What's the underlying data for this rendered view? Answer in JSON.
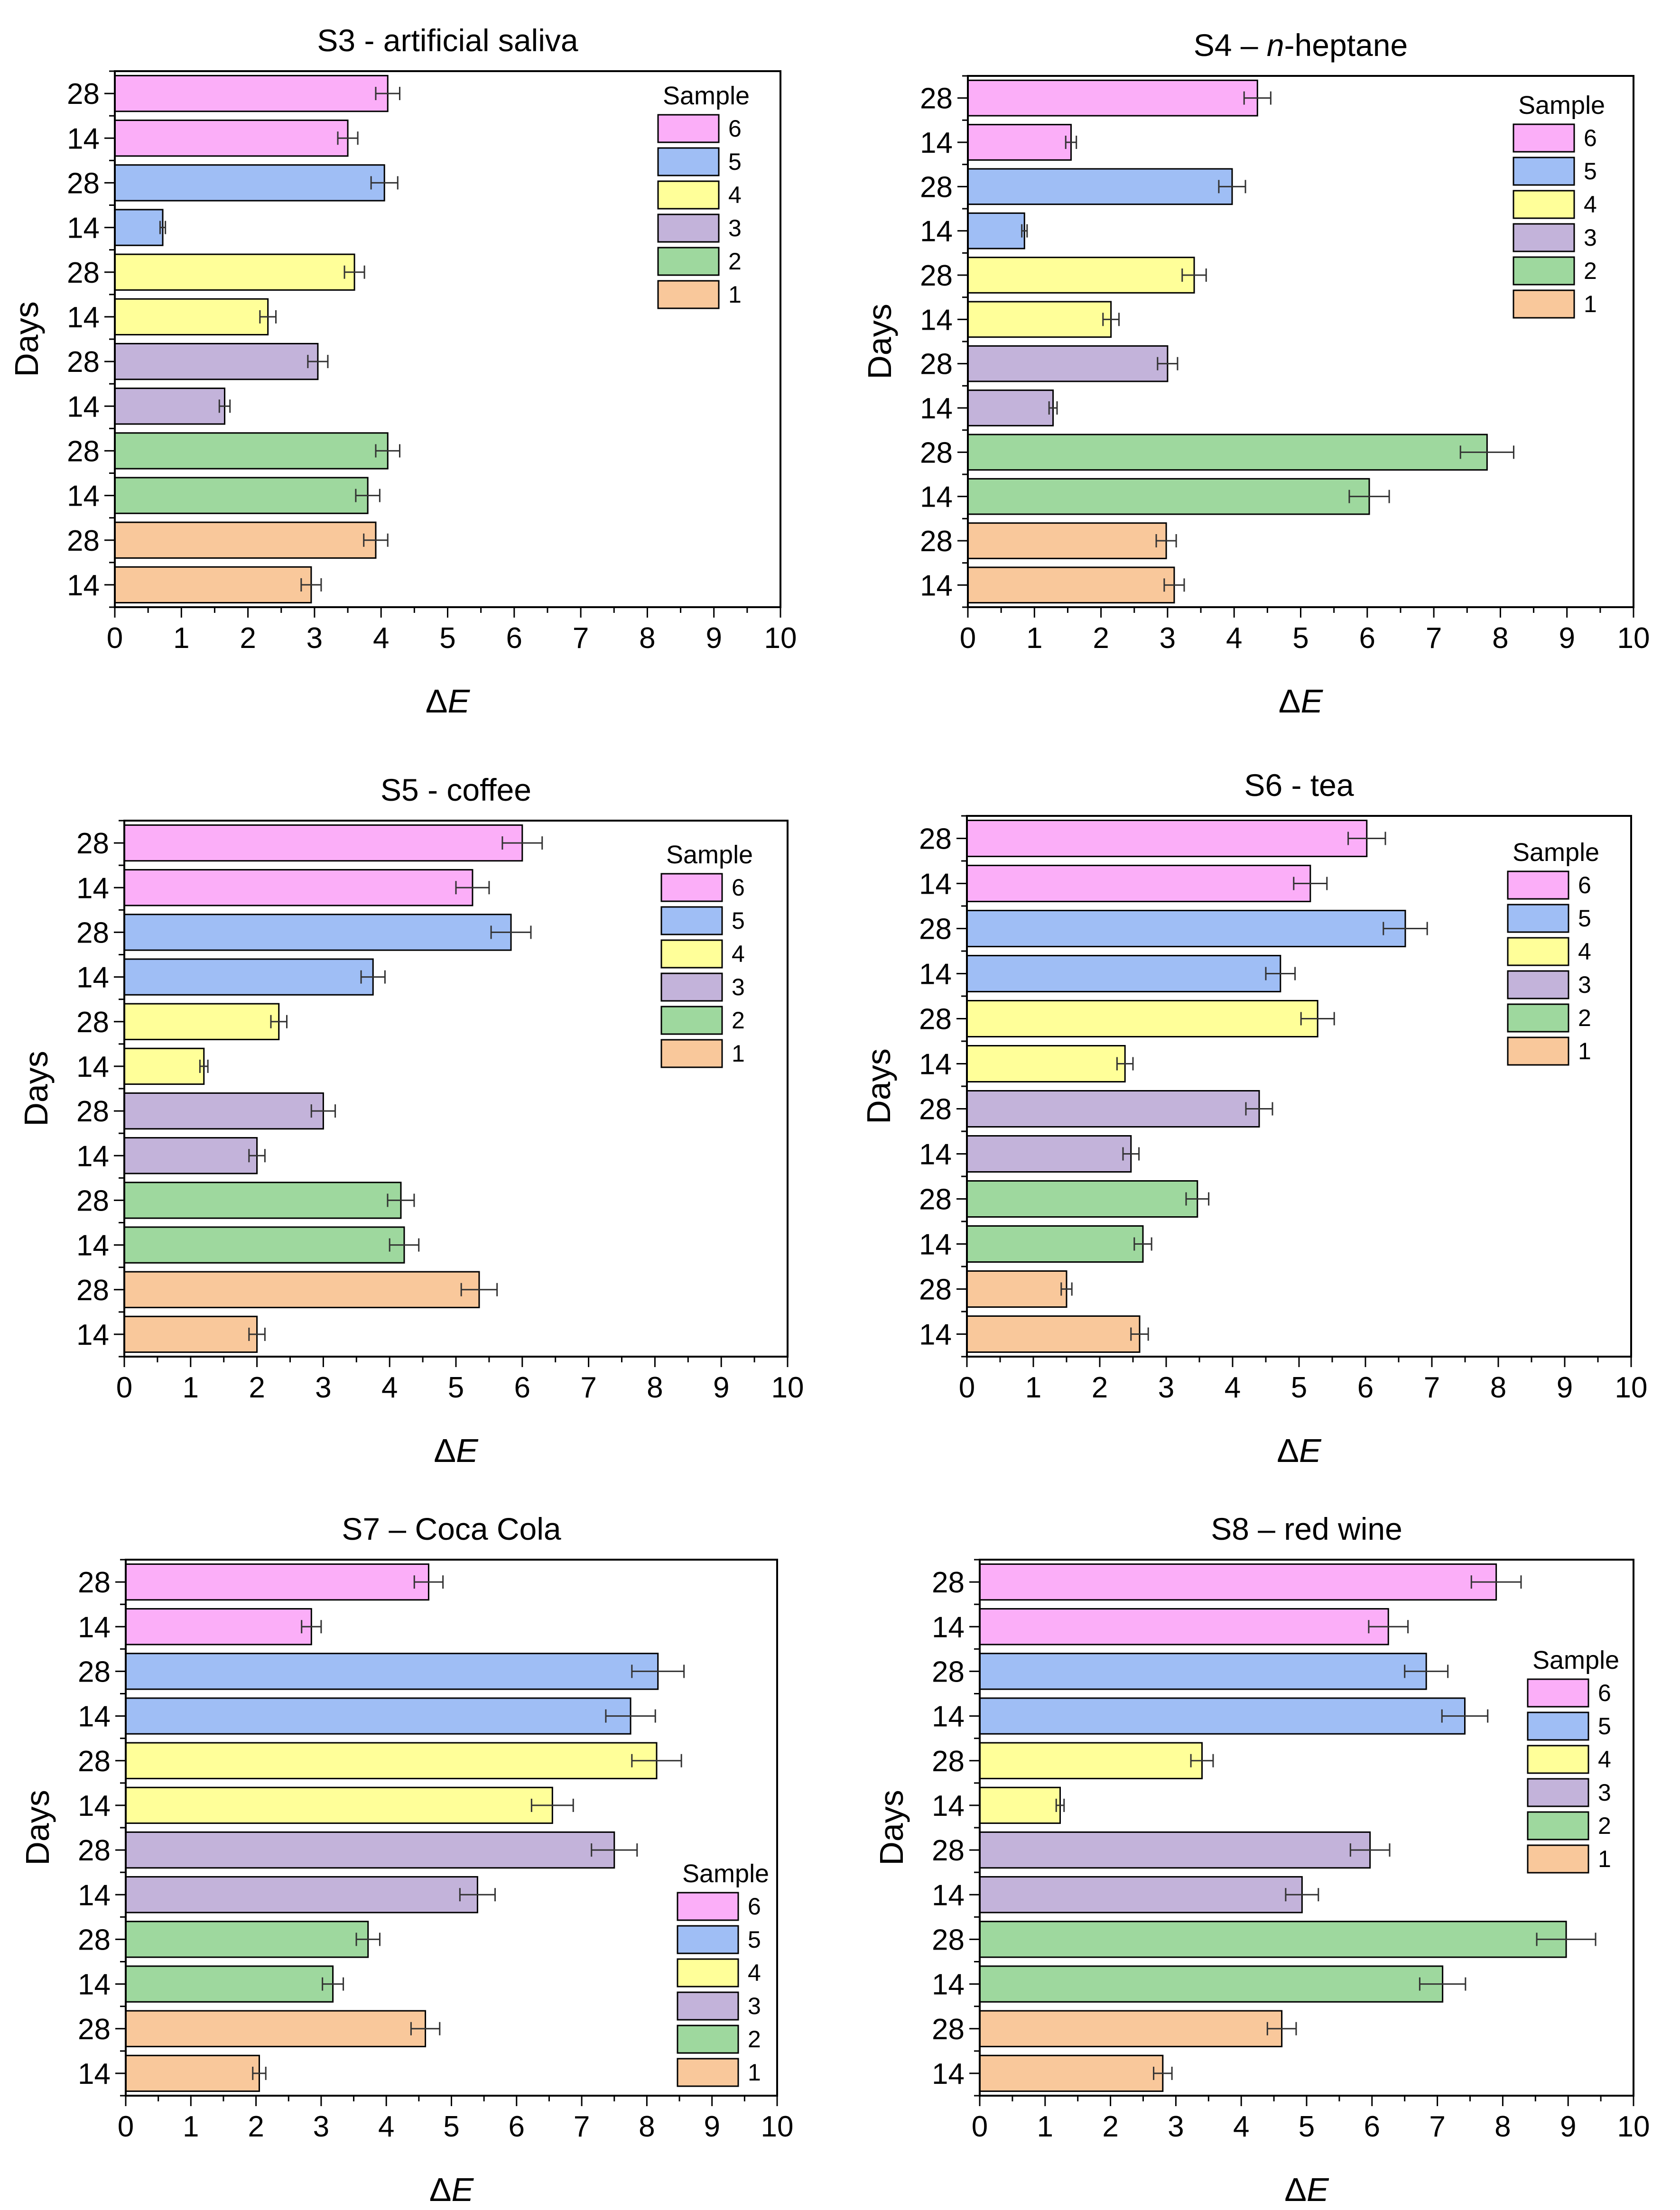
{
  "colors": {
    "1": "#f9c89b",
    "2": "#9ed89e",
    "3": "#c3b3da",
    "4": "#ffff99",
    "5": "#9fbef5",
    "6": "#fbaef8"
  },
  "chart_data": [
    {
      "type": "bar",
      "title_main": "S3 - artificial saliva",
      "title_italic": "",
      "title_tail": "",
      "ylabel": "Days",
      "xlabel_prefix": "Δ",
      "xlabel_italic": "E",
      "xlim": [
        0,
        10
      ],
      "xticks": [
        "0",
        "1",
        "2",
        "3",
        "4",
        "5",
        "6",
        "7",
        "8",
        "9",
        "10"
      ],
      "categories": [
        "28",
        "14",
        "28",
        "14",
        "28",
        "14",
        "28",
        "14",
        "28",
        "14",
        "28",
        "14"
      ],
      "samples": [
        6,
        6,
        5,
        5,
        4,
        4,
        3,
        3,
        2,
        2,
        1,
        1
      ],
      "values": [
        4.1,
        3.5,
        4.05,
        0.72,
        3.6,
        2.3,
        3.05,
        1.65,
        4.1,
        3.8,
        3.92,
        2.95
      ],
      "errors": [
        0.18,
        0.15,
        0.2,
        0.04,
        0.15,
        0.12,
        0.15,
        0.08,
        0.18,
        0.18,
        0.18,
        0.15
      ],
      "legend": {
        "title": "Sample",
        "entries": [
          "6",
          "5",
          "4",
          "3",
          "2",
          "1"
        ],
        "position": "top-right"
      }
    },
    {
      "type": "bar",
      "title_main": "S4 – ",
      "title_italic": "n",
      "title_tail": "-heptane",
      "ylabel": "Days",
      "xlabel_prefix": "Δ",
      "xlabel_italic": "E",
      "xlim": [
        0,
        10
      ],
      "xticks": [
        "0",
        "1",
        "2",
        "3",
        "4",
        "5",
        "6",
        "7",
        "8",
        "9",
        "10"
      ],
      "categories": [
        "28",
        "14",
        "28",
        "14",
        "28",
        "14",
        "28",
        "14",
        "28",
        "14",
        "28",
        "14"
      ],
      "samples": [
        6,
        6,
        5,
        5,
        4,
        4,
        3,
        3,
        2,
        2,
        1,
        1
      ],
      "values": [
        4.35,
        1.55,
        3.97,
        0.85,
        3.4,
        2.15,
        3.0,
        1.28,
        7.8,
        6.03,
        2.98,
        3.1
      ],
      "errors": [
        0.2,
        0.08,
        0.2,
        0.04,
        0.18,
        0.12,
        0.15,
        0.06,
        0.4,
        0.3,
        0.15,
        0.15
      ],
      "legend": {
        "title": "Sample",
        "entries": [
          "6",
          "5",
          "4",
          "3",
          "2",
          "1"
        ],
        "position": "top-right"
      }
    },
    {
      "type": "bar",
      "title_main": "S5 - coffee",
      "title_italic": "",
      "title_tail": "",
      "ylabel": "Days",
      "xlabel_prefix": "Δ",
      "xlabel_italic": "E",
      "xlim": [
        0,
        10
      ],
      "xticks": [
        "0",
        "1",
        "2",
        "3",
        "4",
        "5",
        "6",
        "7",
        "8",
        "9",
        "10"
      ],
      "categories": [
        "28",
        "14",
        "28",
        "14",
        "28",
        "14",
        "28",
        "14",
        "28",
        "14",
        "28",
        "14"
      ],
      "samples": [
        6,
        6,
        5,
        5,
        4,
        4,
        3,
        3,
        2,
        2,
        1,
        1
      ],
      "values": [
        6.0,
        5.25,
        5.83,
        3.75,
        2.33,
        1.2,
        3.0,
        2.0,
        4.17,
        4.22,
        5.35,
        2.0
      ],
      "errors": [
        0.3,
        0.25,
        0.3,
        0.18,
        0.12,
        0.06,
        0.18,
        0.12,
        0.2,
        0.22,
        0.27,
        0.12
      ],
      "legend": {
        "title": "Sample",
        "entries": [
          "6",
          "5",
          "4",
          "3",
          "2",
          "1"
        ],
        "position": "top-right"
      }
    },
    {
      "type": "bar",
      "title_main": "S6 - tea",
      "title_italic": "",
      "title_tail": "",
      "ylabel": "Days",
      "xlabel_prefix": "Δ",
      "xlabel_italic": "E",
      "xlim": [
        0,
        10
      ],
      "xticks": [
        "0",
        "1",
        "2",
        "3",
        "4",
        "5",
        "6",
        "7",
        "8",
        "9",
        "10"
      ],
      "categories": [
        "28",
        "14",
        "28",
        "14",
        "28",
        "14",
        "28",
        "14",
        "28",
        "14",
        "28",
        "14"
      ],
      "samples": [
        6,
        6,
        5,
        5,
        4,
        4,
        3,
        3,
        2,
        2,
        1,
        1
      ],
      "values": [
        6.02,
        5.17,
        6.6,
        4.72,
        5.28,
        2.38,
        4.4,
        2.47,
        3.47,
        2.65,
        1.5,
        2.6
      ],
      "errors": [
        0.28,
        0.25,
        0.33,
        0.22,
        0.25,
        0.12,
        0.2,
        0.12,
        0.17,
        0.13,
        0.08,
        0.13
      ],
      "legend": {
        "title": "Sample",
        "entries": [
          "6",
          "5",
          "4",
          "3",
          "2",
          "1"
        ],
        "position": "top-right"
      }
    },
    {
      "type": "bar",
      "title_main": "S7 – Coca Cola",
      "title_italic": "",
      "title_tail": "",
      "ylabel": "Days",
      "xlabel_prefix": "Δ",
      "xlabel_italic": "E",
      "xlim": [
        0,
        10
      ],
      "xticks": [
        "0",
        "1",
        "2",
        "3",
        "4",
        "5",
        "6",
        "7",
        "8",
        "9",
        "10"
      ],
      "categories": [
        "28",
        "14",
        "28",
        "14",
        "28",
        "14",
        "28",
        "14",
        "28",
        "14",
        "28",
        "14"
      ],
      "samples": [
        6,
        6,
        5,
        5,
        4,
        4,
        3,
        3,
        2,
        2,
        1,
        1
      ],
      "values": [
        4.65,
        2.85,
        8.17,
        7.75,
        8.15,
        6.55,
        7.5,
        5.4,
        3.72,
        3.18,
        4.6,
        2.05
      ],
      "errors": [
        0.22,
        0.15,
        0.4,
        0.38,
        0.38,
        0.32,
        0.35,
        0.27,
        0.18,
        0.16,
        0.22,
        0.1
      ],
      "legend": {
        "title": "Sample",
        "entries": [
          "6",
          "5",
          "4",
          "3",
          "2",
          "1"
        ],
        "position": "bottom-right"
      }
    },
    {
      "type": "bar",
      "title_main": "S8 – red wine",
      "title_italic": "",
      "title_tail": "",
      "ylabel": "Days",
      "xlabel_prefix": "Δ",
      "xlabel_italic": "E",
      "xlim": [
        0,
        10
      ],
      "xticks": [
        "0",
        "1",
        "2",
        "3",
        "4",
        "5",
        "6",
        "7",
        "8",
        "9",
        "10"
      ],
      "categories": [
        "28",
        "14",
        "28",
        "14",
        "28",
        "14",
        "28",
        "14",
        "28",
        "14",
        "28",
        "14"
      ],
      "samples": [
        6,
        6,
        5,
        5,
        4,
        4,
        3,
        3,
        2,
        2,
        1,
        1
      ],
      "values": [
        7.9,
        6.25,
        6.83,
        7.42,
        3.4,
        1.23,
        5.97,
        4.93,
        8.97,
        7.08,
        4.62,
        2.8
      ],
      "errors": [
        0.38,
        0.3,
        0.33,
        0.35,
        0.17,
        0.06,
        0.3,
        0.25,
        0.45,
        0.35,
        0.22,
        0.14
      ],
      "legend": {
        "title": "Sample",
        "entries": [
          "6",
          "5",
          "4",
          "3",
          "2",
          "1"
        ],
        "position": "right-middle"
      }
    }
  ]
}
